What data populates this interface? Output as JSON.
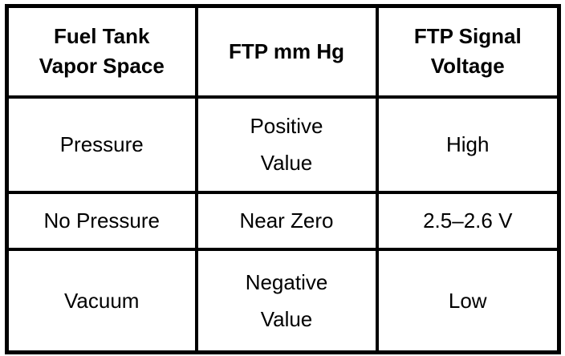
{
  "page": {
    "background_color": "#ffffff"
  },
  "table": {
    "border_color": "#000000",
    "text_color": "#000000",
    "header": [
      {
        "lines": [
          "Fuel Tank",
          "Vapor Space"
        ]
      },
      {
        "lines": [
          "FTP mm Hg"
        ]
      },
      {
        "lines": [
          "FTP Signal",
          "Voltage"
        ]
      }
    ],
    "rows": [
      {
        "cells": [
          {
            "lines": [
              "Pressure"
            ]
          },
          {
            "lines": [
              "Positive",
              "Value"
            ]
          },
          {
            "lines": [
              "High"
            ]
          }
        ]
      },
      {
        "cells": [
          {
            "lines": [
              "No Pressure"
            ]
          },
          {
            "lines": [
              "Near Zero"
            ]
          },
          {
            "lines": [
              "2.5–2.6 V"
            ]
          }
        ]
      },
      {
        "cells": [
          {
            "lines": [
              "Vacuum"
            ]
          },
          {
            "lines": [
              "Negative",
              "Value"
            ]
          },
          {
            "lines": [
              "Low"
            ]
          }
        ]
      }
    ]
  }
}
